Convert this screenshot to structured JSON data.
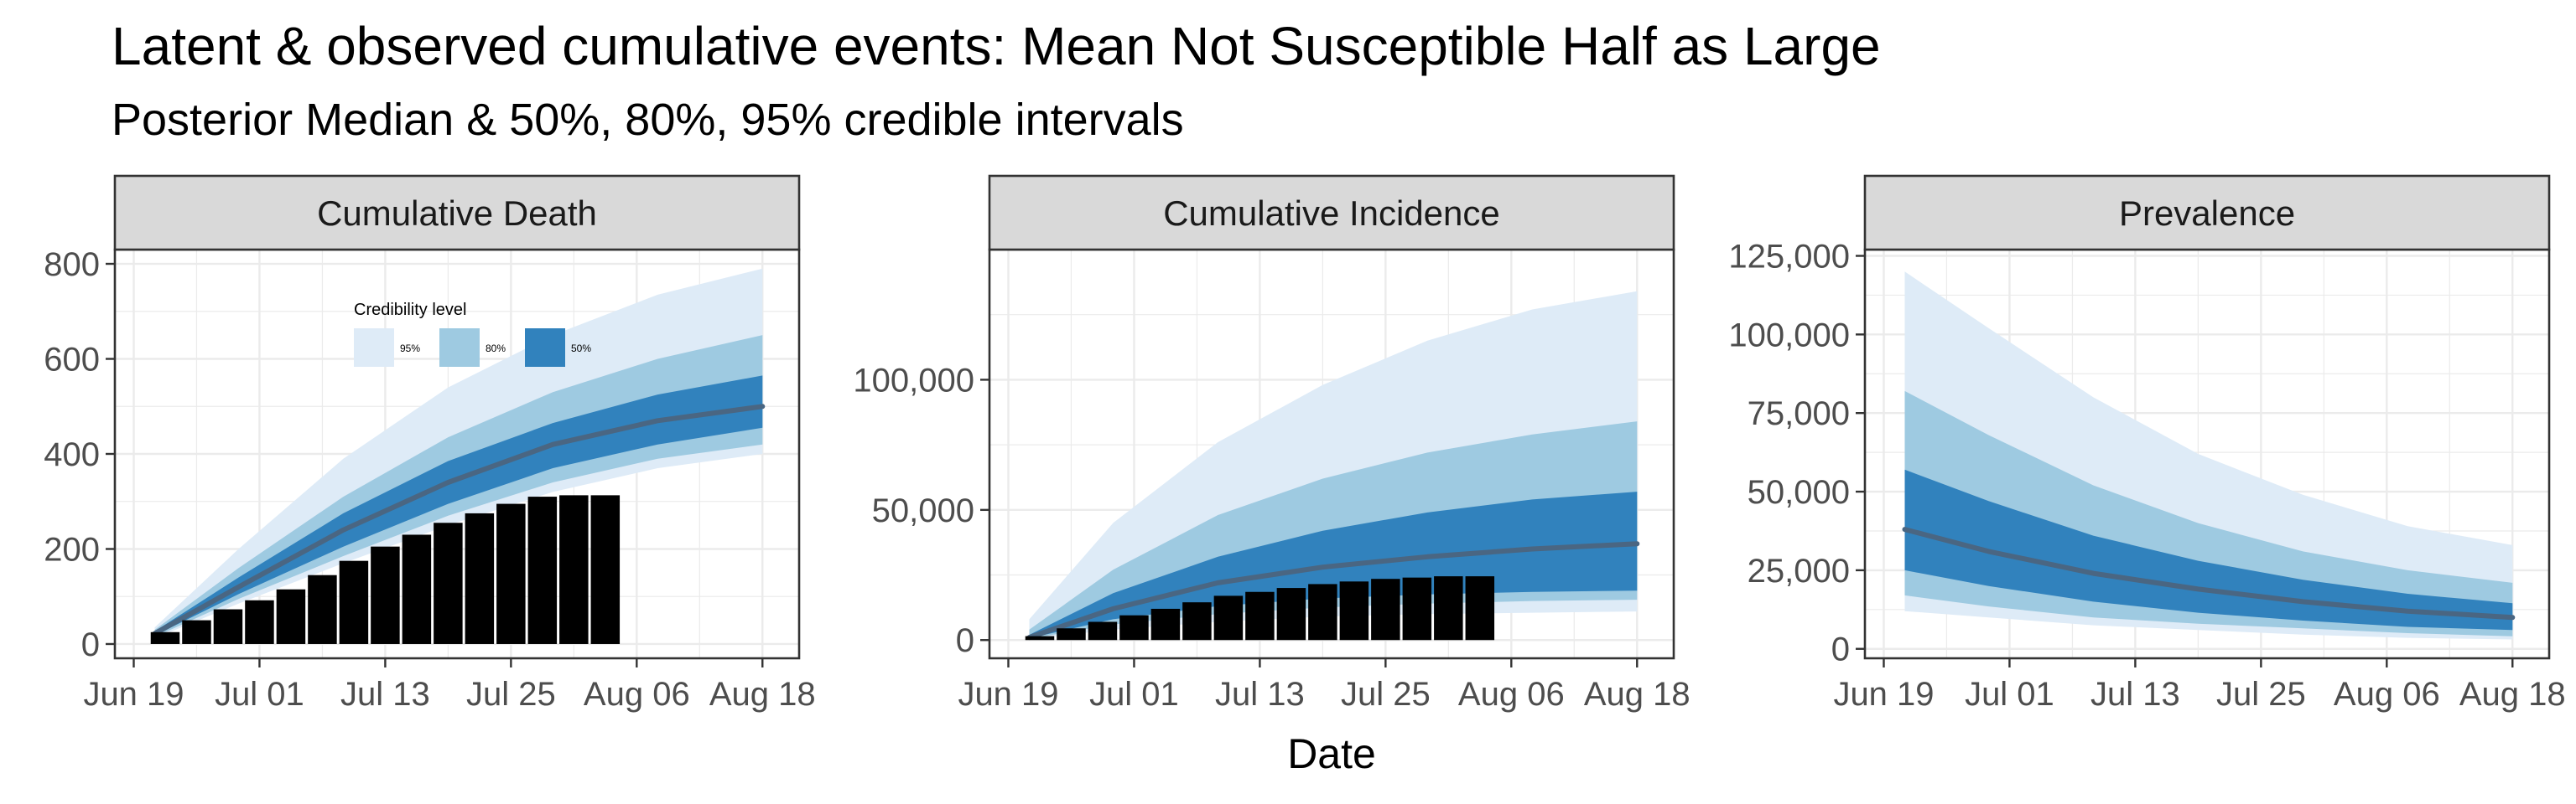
{
  "title": "Latent & observed cumulative events: Mean Not Susceptible Half as Large",
  "subtitle": "Posterior Median & 50%, 80%, 95% credible intervals",
  "xlabel": "Date",
  "colors": {
    "ci95": "#deebf7",
    "ci80": "#9ecae1",
    "ci50": "#3182bd",
    "median": "#4a6682",
    "observed": "#000000",
    "strip_bg": "#d9d9d9",
    "grid": "#ebebeb"
  },
  "legend": {
    "title": "Credibility level",
    "items": [
      {
        "label": "95%",
        "color": "#deebf7"
      },
      {
        "label": "80%",
        "color": "#9ecae1"
      },
      {
        "label": "50%",
        "color": "#3182bd"
      }
    ]
  },
  "chart_data": [
    {
      "type": "area",
      "panel": "Cumulative Death",
      "x_ticks": [
        "Jun 19",
        "Jul 01",
        "Jul 13",
        "Jul 25",
        "Aug 06",
        "Aug 18"
      ],
      "x_tick_days": [
        0,
        12,
        24,
        36,
        48,
        60
      ],
      "xlim_days": [
        -1.8,
        63.5
      ],
      "ylim": [
        -30,
        830
      ],
      "y_ticks": [
        0,
        200,
        400,
        600,
        800
      ],
      "y_tick_labels": [
        "0",
        "200",
        "400",
        "600",
        "800"
      ],
      "x_days": [
        2,
        10,
        20,
        30,
        40,
        50,
        60
      ],
      "median": [
        22,
        120,
        240,
        340,
        420,
        470,
        500
      ],
      "ci50": {
        "lower": [
          18,
          105,
          205,
          295,
          370,
          420,
          455
        ],
        "upper": [
          27,
          140,
          275,
          385,
          465,
          525,
          565
        ]
      },
      "ci80": {
        "lower": [
          15,
          95,
          185,
          270,
          340,
          390,
          420
        ],
        "upper": [
          30,
          160,
          310,
          435,
          530,
          600,
          650
        ]
      },
      "ci95": {
        "lower": [
          12,
          85,
          170,
          250,
          320,
          370,
          400
        ],
        "upper": [
          35,
          200,
          390,
          540,
          650,
          735,
          790
        ]
      },
      "observed": {
        "x_days": [
          3,
          6,
          9,
          12,
          15,
          18,
          21,
          24,
          27,
          30,
          33,
          36,
          39,
          42,
          45
        ],
        "values": [
          25,
          50,
          73,
          92,
          115,
          145,
          175,
          205,
          230,
          255,
          275,
          295,
          310,
          313,
          313
        ]
      }
    },
    {
      "type": "area",
      "panel": "Cumulative Incidence",
      "x_ticks": [
        "Jun 19",
        "Jul 01",
        "Jul 13",
        "Jul 25",
        "Aug 06",
        "Aug 18"
      ],
      "x_tick_days": [
        0,
        12,
        24,
        36,
        48,
        60
      ],
      "xlim_days": [
        -1.8,
        63.5
      ],
      "ylim": [
        -7000,
        150000
      ],
      "y_ticks": [
        0,
        50000,
        100000
      ],
      "y_tick_labels": [
        "0",
        "50,000",
        "100,000"
      ],
      "x_days": [
        2,
        10,
        20,
        30,
        40,
        50,
        60
      ],
      "median": [
        1000,
        12000,
        22000,
        28000,
        32000,
        35000,
        37000
      ],
      "ci50": {
        "lower": [
          700,
          8000,
          13000,
          16000,
          17500,
          18500,
          19000
        ],
        "upper": [
          2000,
          18000,
          32000,
          42000,
          49000,
          54000,
          57000
        ]
      },
      "ci80": {
        "lower": [
          500,
          6000,
          10000,
          12500,
          14000,
          15000,
          15500
        ],
        "upper": [
          4000,
          27000,
          48000,
          62000,
          72000,
          79000,
          84000
        ]
      },
      "ci95": {
        "lower": [
          300,
          4000,
          7000,
          9000,
          10000,
          10500,
          11000
        ],
        "upper": [
          8000,
          45000,
          76000,
          98000,
          115000,
          127000,
          134000
        ]
      },
      "observed": {
        "x_days": [
          3,
          6,
          9,
          12,
          15,
          18,
          21,
          24,
          27,
          30,
          33,
          36,
          39,
          42,
          45
        ],
        "values": [
          1500,
          4500,
          7000,
          9500,
          12000,
          14500,
          17000,
          18500,
          20000,
          21500,
          22500,
          23500,
          24000,
          24500,
          24500
        ]
      }
    },
    {
      "type": "area",
      "panel": "Prevalence",
      "x_ticks": [
        "Jun 19",
        "Jul 01",
        "Jul 13",
        "Jul 25",
        "Aug 06",
        "Aug 18"
      ],
      "x_tick_days": [
        0,
        12,
        24,
        36,
        48,
        60
      ],
      "xlim_days": [
        -1.8,
        63.5
      ],
      "ylim": [
        -3000,
        127000
      ],
      "y_ticks": [
        0,
        25000,
        50000,
        75000,
        100000,
        125000
      ],
      "y_tick_labels": [
        "0",
        "25,000",
        "50,000",
        "75,000",
        "100,000",
        "125,000"
      ],
      "x_days": [
        2,
        10,
        20,
        30,
        40,
        50,
        60
      ],
      "median": [
        38000,
        31000,
        24000,
        19000,
        15000,
        12000,
        10000
      ],
      "ci50": {
        "lower": [
          25000,
          20000,
          15000,
          11500,
          9000,
          7000,
          6000
        ],
        "upper": [
          57000,
          47000,
          36000,
          28000,
          22000,
          17500,
          14500
        ]
      },
      "ci80": {
        "lower": [
          17000,
          13500,
          10000,
          8000,
          6500,
          5000,
          4000
        ],
        "upper": [
          82000,
          68000,
          52000,
          40000,
          31000,
          25000,
          21000
        ]
      },
      "ci95": {
        "lower": [
          12000,
          10000,
          7500,
          6000,
          4500,
          3500,
          3000
        ],
        "upper": [
          120000,
          102000,
          80000,
          62000,
          49000,
          39000,
          33000
        ]
      }
    }
  ]
}
